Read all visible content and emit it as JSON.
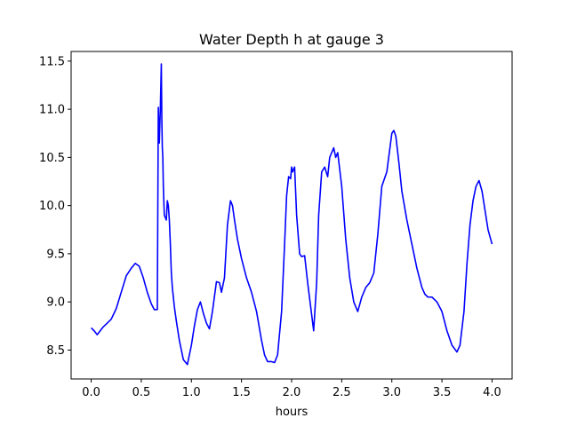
{
  "chart_data": {
    "type": "line",
    "title": "Water Depth h at gauge 3",
    "xlabel": "hours",
    "ylabel": "",
    "xlim": [
      -0.2,
      4.2
    ],
    "ylim": [
      8.2,
      11.6
    ],
    "xticks": [
      0.0,
      0.5,
      1.0,
      1.5,
      2.0,
      2.5,
      3.0,
      3.5,
      4.0
    ],
    "xtick_labels": [
      "0.0",
      "0.5",
      "1.0",
      "1.5",
      "2.0",
      "2.5",
      "3.0",
      "3.5",
      "4.0"
    ],
    "yticks": [
      8.5,
      9.0,
      9.5,
      10.0,
      10.5,
      11.0,
      11.5
    ],
    "ytick_labels": [
      "8.5",
      "9.0",
      "9.5",
      "10.0",
      "10.5",
      "11.0",
      "11.5"
    ],
    "grid": false,
    "series": [
      {
        "color": "#0000ff",
        "x": [
          0.0,
          0.03,
          0.06,
          0.09,
          0.12,
          0.15,
          0.2,
          0.25,
          0.3,
          0.35,
          0.4,
          0.44,
          0.48,
          0.52,
          0.56,
          0.6,
          0.63,
          0.66,
          0.67,
          0.68,
          0.69,
          0.7,
          0.705,
          0.71,
          0.715,
          0.72,
          0.73,
          0.75,
          0.76,
          0.77,
          0.78,
          0.79,
          0.8,
          0.81,
          0.82,
          0.83,
          0.85,
          0.88,
          0.92,
          0.96,
          1.0,
          1.03,
          1.06,
          1.09,
          1.12,
          1.15,
          1.18,
          1.21,
          1.25,
          1.28,
          1.3,
          1.33,
          1.36,
          1.39,
          1.41,
          1.43,
          1.46,
          1.5,
          1.55,
          1.6,
          1.65,
          1.7,
          1.73,
          1.76,
          1.8,
          1.83,
          1.86,
          1.9,
          1.93,
          1.95,
          1.97,
          1.99,
          2.0,
          2.01,
          2.03,
          2.05,
          2.08,
          2.1,
          2.13,
          2.16,
          2.19,
          2.22,
          2.25,
          2.27,
          2.3,
          2.33,
          2.36,
          2.38,
          2.4,
          2.42,
          2.44,
          2.46,
          2.5,
          2.54,
          2.58,
          2.62,
          2.66,
          2.7,
          2.74,
          2.78,
          2.82,
          2.86,
          2.9,
          2.95,
          3.0,
          3.02,
          3.04,
          3.07,
          3.1,
          3.15,
          3.2,
          3.25,
          3.3,
          3.33,
          3.36,
          3.4,
          3.45,
          3.5,
          3.55,
          3.6,
          3.65,
          3.68,
          3.72,
          3.75,
          3.78,
          3.81,
          3.84,
          3.87,
          3.9,
          3.93,
          3.96,
          4.0
        ],
        "y": [
          8.73,
          8.7,
          8.66,
          8.7,
          8.74,
          8.77,
          8.82,
          8.93,
          9.1,
          9.27,
          9.35,
          9.4,
          9.37,
          9.25,
          9.1,
          8.98,
          8.92,
          8.92,
          11.02,
          10.65,
          11.0,
          11.47,
          10.9,
          10.6,
          10.5,
          10.2,
          9.9,
          9.85,
          10.05,
          10.0,
          9.85,
          9.6,
          9.3,
          9.15,
          9.05,
          8.95,
          8.8,
          8.6,
          8.4,
          8.35,
          8.55,
          8.75,
          8.92,
          9.0,
          8.88,
          8.78,
          8.72,
          8.9,
          9.21,
          9.2,
          9.1,
          9.25,
          9.8,
          10.05,
          10.0,
          9.85,
          9.65,
          9.45,
          9.25,
          9.1,
          8.9,
          8.6,
          8.45,
          8.38,
          8.38,
          8.37,
          8.45,
          8.9,
          9.6,
          10.1,
          10.3,
          10.28,
          10.4,
          10.35,
          10.4,
          9.9,
          9.5,
          9.47,
          9.48,
          9.2,
          8.95,
          8.7,
          9.2,
          9.9,
          10.35,
          10.4,
          10.3,
          10.5,
          10.55,
          10.6,
          10.5,
          10.55,
          10.2,
          9.65,
          9.25,
          9.0,
          8.9,
          9.05,
          9.15,
          9.2,
          9.3,
          9.7,
          10.2,
          10.35,
          10.75,
          10.78,
          10.72,
          10.45,
          10.15,
          9.85,
          9.6,
          9.35,
          9.15,
          9.08,
          9.05,
          9.05,
          9.0,
          8.9,
          8.7,
          8.55,
          8.48,
          8.55,
          8.9,
          9.4,
          9.8,
          10.05,
          10.2,
          10.26,
          10.15,
          9.95,
          9.75,
          9.6
        ]
      }
    ]
  }
}
